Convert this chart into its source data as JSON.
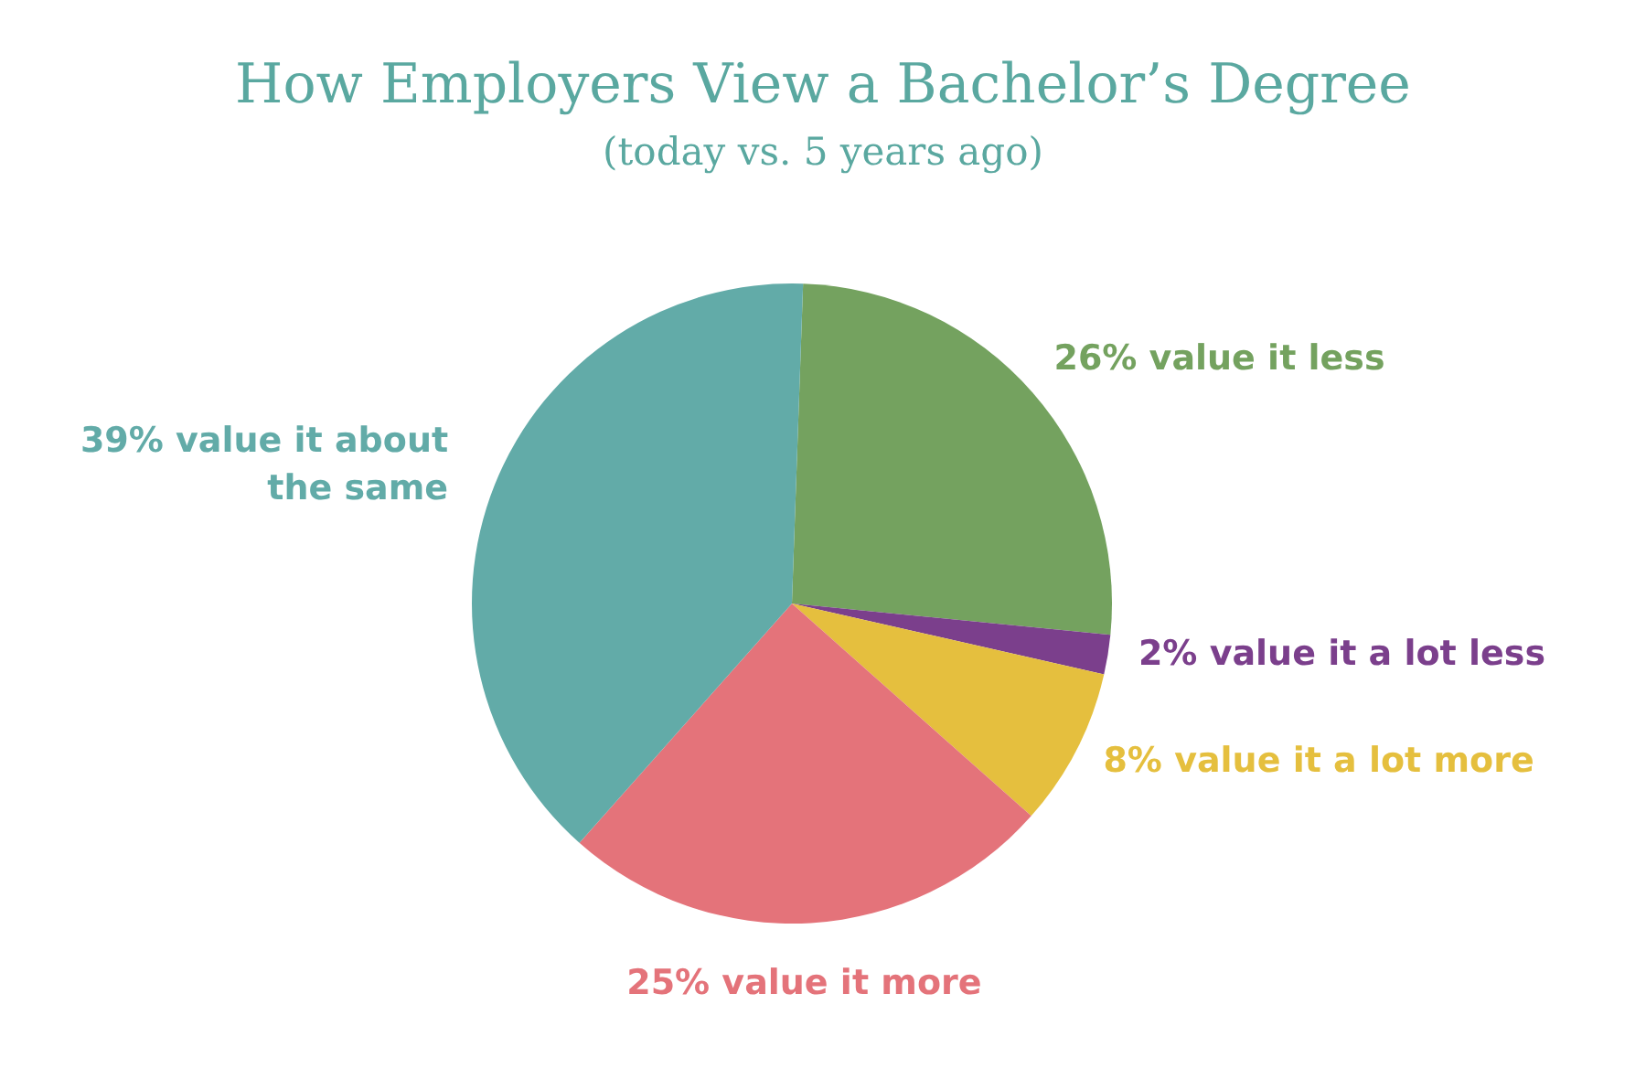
{
  "chart_data": {
    "type": "pie",
    "title": "How Employers View a Bachelor’s Degree",
    "subtitle": "(today vs. 5 years ago)",
    "categories": [
      "26% value it less",
      "2% value it a lot less",
      "8% value it a lot more",
      "25% value it more",
      "39% value it about the same"
    ],
    "values": [
      26,
      2,
      8,
      25,
      39
    ],
    "colors": [
      "#74a25f",
      "#7b3f8c",
      "#e5bf3e",
      "#e4737a",
      "#62aba8"
    ],
    "legend": false
  }
}
